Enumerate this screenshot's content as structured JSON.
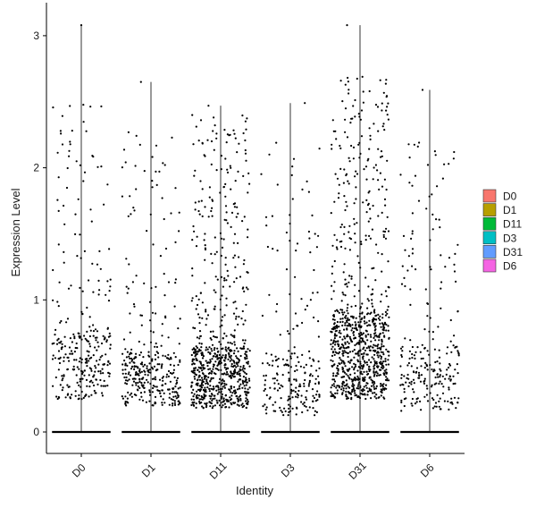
{
  "chart_data": {
    "type": "scatter",
    "subtype": "jittered-strip-with-violin",
    "xlabel": "Identity",
    "ylabel": "Expression Level",
    "categories": [
      "D0",
      "D1",
      "D11",
      "D3",
      "D31",
      "D6"
    ],
    "ylim": [
      -0.15,
      3.25
    ],
    "yticks": [
      0,
      1,
      2,
      3
    ],
    "grid": false,
    "legend": {
      "placement": "right",
      "entries": [
        {
          "label": "D0",
          "color": "#F8766D"
        },
        {
          "label": "D1",
          "color": "#B79F00"
        },
        {
          "label": "D11",
          "color": "#00BA38"
        },
        {
          "label": "D3",
          "color": "#00BFC4"
        },
        {
          "label": "D31",
          "color": "#619CFF"
        },
        {
          "label": "D6",
          "color": "#F564E3"
        }
      ]
    },
    "series": [
      {
        "name": "D0",
        "max": 3.08,
        "nonzero_points": 300,
        "bulk_low": 0.25,
        "bulk_high": 0.75,
        "spread_max": 2.5
      },
      {
        "name": "D1",
        "max": 2.65,
        "nonzero_points": 340,
        "bulk_low": 0.2,
        "bulk_high": 0.6,
        "spread_max": 2.3
      },
      {
        "name": "D11",
        "max": 2.47,
        "nonzero_points": 760,
        "bulk_low": 0.18,
        "bulk_high": 0.65,
        "spread_max": 2.4
      },
      {
        "name": "D3",
        "max": 2.49,
        "nonzero_points": 220,
        "bulk_low": 0.12,
        "bulk_high": 0.6,
        "spread_max": 2.2
      },
      {
        "name": "D31",
        "max": 3.08,
        "nonzero_points": 880,
        "bulk_low": 0.25,
        "bulk_high": 0.9,
        "spread_max": 2.7
      },
      {
        "name": "D6",
        "max": 2.59,
        "nonzero_points": 250,
        "bulk_low": 0.15,
        "bulk_high": 0.65,
        "spread_max": 2.2
      }
    ]
  }
}
